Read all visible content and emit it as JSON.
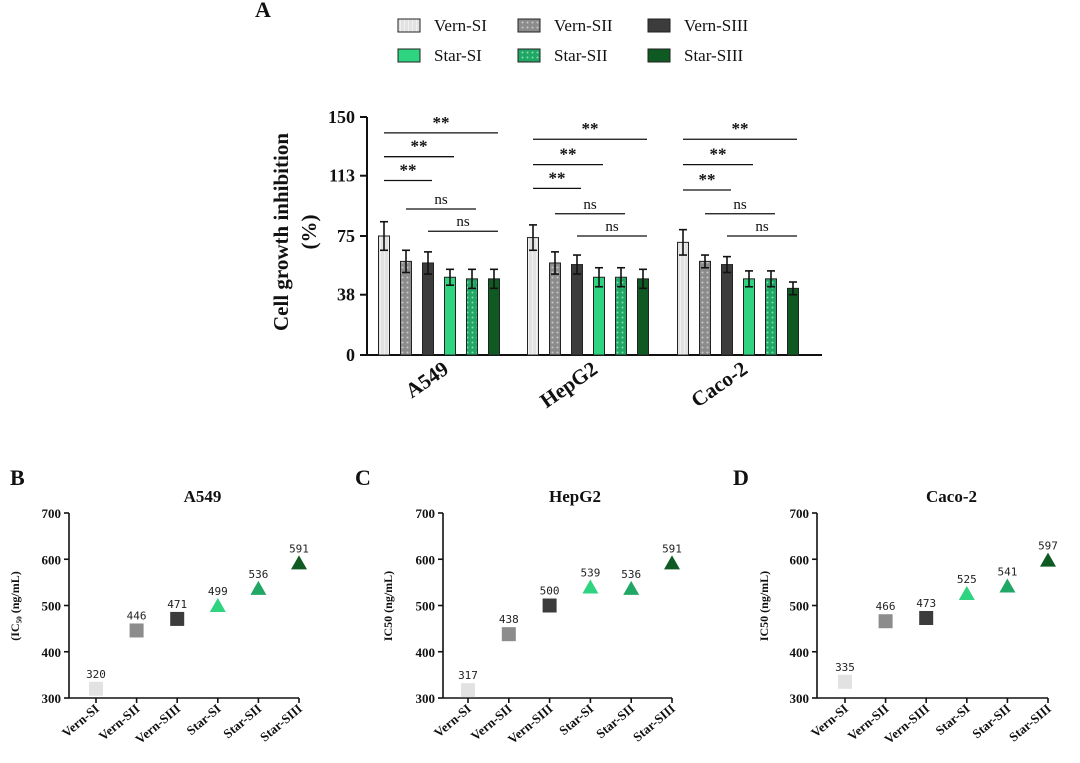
{
  "colors": {
    "Vern-SI": "#e2e2e2",
    "Vern-SII": "#8c8c8c",
    "Vern-SIII": "#3c3c3c",
    "Star-SI": "#2ed47f",
    "Star-SII": "#21a765",
    "Star-SIII": "#0f5a23"
  },
  "chart_data": [
    {
      "panel": "A",
      "type": "bar",
      "title": "",
      "ylabel": "Cell growth inhibition (%)",
      "ylabel_lines": [
        "Cell growth inhibition",
        "(%)"
      ],
      "ylim": [
        0,
        150
      ],
      "yticks": [
        "0",
        "38",
        "75",
        "113",
        "150"
      ],
      "ytick_values": [
        0,
        38,
        75,
        113,
        150
      ],
      "categories": [
        "A549",
        "HepG2",
        "Caco-2"
      ],
      "legend": [
        "Vern-SI",
        "Vern-SII",
        "Vern-SIII",
        "Star-SI",
        "Star-SII",
        "Star-SIII"
      ],
      "series": [
        {
          "name": "Vern-SI",
          "values": [
            75,
            74,
            71
          ],
          "errors": [
            9,
            8,
            8
          ]
        },
        {
          "name": "Vern-SII",
          "values": [
            59,
            58,
            59
          ],
          "errors": [
            7,
            7,
            4
          ]
        },
        {
          "name": "Vern-SIII",
          "values": [
            58,
            57,
            57
          ],
          "errors": [
            7,
            6,
            5
          ]
        },
        {
          "name": "Star-SI",
          "values": [
            49,
            49,
            48
          ],
          "errors": [
            5,
            6,
            5
          ]
        },
        {
          "name": "Star-SII",
          "values": [
            48,
            49,
            48
          ],
          "errors": [
            6,
            6,
            5
          ]
        },
        {
          "name": "Star-SIII",
          "values": [
            48,
            48,
            42
          ],
          "errors": [
            6,
            6,
            4
          ]
        }
      ],
      "annotations": [
        {
          "category": "A549",
          "from": "Vern-SI",
          "to": "Star-SIII",
          "y": 140,
          "label": "**"
        },
        {
          "category": "A549",
          "from": "Vern-SI",
          "to": "Star-SI",
          "y": 125,
          "label": "**"
        },
        {
          "category": "A549",
          "from": "Vern-SI",
          "to": "Vern-SIII",
          "y": 110,
          "label": "**"
        },
        {
          "category": "A549",
          "from": "Vern-SII",
          "to": "Star-SII",
          "y": 92,
          "label": "ns"
        },
        {
          "category": "A549",
          "from": "Vern-SIII",
          "to": "Star-SIII",
          "y": 78,
          "label": "ns"
        },
        {
          "category": "HepG2",
          "from": "Vern-SI",
          "to": "Star-SIII",
          "y": 136,
          "label": "**"
        },
        {
          "category": "HepG2",
          "from": "Vern-SI",
          "to": "Star-SI",
          "y": 120,
          "label": "**"
        },
        {
          "category": "HepG2",
          "from": "Vern-SI",
          "to": "Vern-SIII",
          "y": 105,
          "label": "**"
        },
        {
          "category": "HepG2",
          "from": "Vern-SII",
          "to": "Star-SII",
          "y": 89,
          "label": "ns"
        },
        {
          "category": "HepG2",
          "from": "Vern-SIII",
          "to": "Star-SIII",
          "y": 75,
          "label": "ns"
        },
        {
          "category": "Caco-2",
          "from": "Vern-SI",
          "to": "Star-SIII",
          "y": 136,
          "label": "**"
        },
        {
          "category": "Caco-2",
          "from": "Vern-SI",
          "to": "Star-SI",
          "y": 120,
          "label": "**"
        },
        {
          "category": "Caco-2",
          "from": "Vern-SI",
          "to": "Vern-SIII",
          "y": 104,
          "label": "**"
        },
        {
          "category": "Caco-2",
          "from": "Vern-SII",
          "to": "Star-SII",
          "y": 89,
          "label": "ns"
        },
        {
          "category": "Caco-2",
          "from": "Vern-SIII",
          "to": "Star-SIII",
          "y": 75,
          "label": "ns"
        }
      ]
    },
    {
      "panel": "B",
      "type": "scatter",
      "title": "A549",
      "ylabel": "(IC₅₀ (ng/mL)",
      "ylim": [
        300,
        700
      ],
      "yticks": [
        "300",
        "400",
        "500",
        "600",
        "700"
      ],
      "ytick_values": [
        300,
        400,
        500,
        600,
        700
      ],
      "categories": [
        "Vern-SI",
        "Vern-SII",
        "Vern-SIII",
        "Star-SI",
        "Star-SII",
        "Star-SIII"
      ],
      "values": [
        320,
        446,
        471,
        499,
        536,
        591
      ],
      "markers": [
        "square",
        "square",
        "square",
        "triangle",
        "triangle",
        "triangle"
      ]
    },
    {
      "panel": "C",
      "type": "scatter",
      "title": "HepG2",
      "ylabel": "IC50 (ng/mL)",
      "ylim": [
        300,
        700
      ],
      "yticks": [
        "300",
        "400",
        "500",
        "600",
        "700"
      ],
      "ytick_values": [
        300,
        400,
        500,
        600,
        700
      ],
      "categories": [
        "Vern-SI",
        "Vern-SII",
        "Vern-SIII",
        "Star-SI",
        "Star-SII",
        "Star-SIII"
      ],
      "values": [
        317,
        438,
        500,
        539,
        536,
        591
      ],
      "markers": [
        "square",
        "square",
        "square",
        "triangle",
        "triangle",
        "triangle"
      ]
    },
    {
      "panel": "D",
      "type": "scatter",
      "title": "Caco-2",
      "ylabel": "IC50 (ng/mL)",
      "ylim": [
        300,
        700
      ],
      "yticks": [
        "300",
        "400",
        "500",
        "600",
        "700"
      ],
      "ytick_values": [
        300,
        400,
        500,
        600,
        700
      ],
      "categories": [
        "Vern-SI",
        "Vern-SII",
        "Vern-SIII",
        "Star-SI",
        "Star-SII",
        "Star-SIII"
      ],
      "values": [
        335,
        466,
        473,
        525,
        541,
        597
      ],
      "markers": [
        "square",
        "square",
        "square",
        "triangle",
        "triangle",
        "triangle"
      ]
    }
  ]
}
